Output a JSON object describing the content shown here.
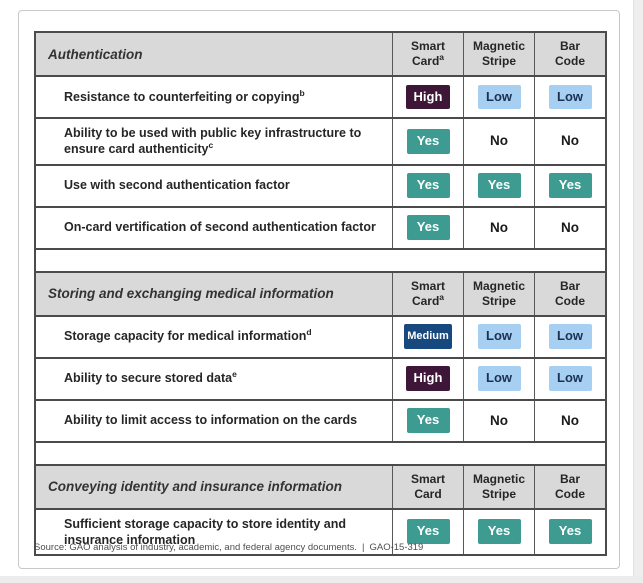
{
  "footer": {
    "source": "Source: GAO analysis of industry, academic, and federal agency documents.",
    "divider": "|",
    "report_number": "GAO-15-319"
  },
  "colors": {
    "badge_high_bg": "#3e1638",
    "badge_medium_bg": "#17497f",
    "badge_yes_bg": "#3d9b91",
    "badge_low_bg": "#a6cff2",
    "badge_low_text": "#1c3152",
    "header_row_bg": "#d9d9d9",
    "table_border": "#4b4b4b"
  },
  "sections": [
    {
      "title": "Authentication",
      "columns": [
        {
          "line1": "Smart",
          "line2": "Card",
          "sup": "a"
        },
        {
          "line1": "Magnetic",
          "line2": "Stripe",
          "sup": ""
        },
        {
          "line1": "Bar",
          "line2": "Code",
          "sup": ""
        }
      ],
      "rows": [
        {
          "label": "Resistance to counterfeiting or copying",
          "sup": "b",
          "values": [
            {
              "text": "High",
              "style": "high"
            },
            {
              "text": "Low",
              "style": "low"
            },
            {
              "text": "Low",
              "style": "low"
            }
          ]
        },
        {
          "label": "Ability to be used with public key infrastructure to ensure card authenticity",
          "sup": "c",
          "values": [
            {
              "text": "Yes",
              "style": "yes"
            },
            {
              "text": "No",
              "style": "none"
            },
            {
              "text": "No",
              "style": "none"
            }
          ]
        },
        {
          "label": "Use with second authentication factor",
          "sup": "",
          "values": [
            {
              "text": "Yes",
              "style": "yes"
            },
            {
              "text": "Yes",
              "style": "yes"
            },
            {
              "text": "Yes",
              "style": "yes"
            }
          ]
        },
        {
          "label": "On-card vertification of second authentication factor",
          "sup": "",
          "values": [
            {
              "text": "Yes",
              "style": "yes"
            },
            {
              "text": "No",
              "style": "none"
            },
            {
              "text": "No",
              "style": "none"
            }
          ]
        }
      ]
    },
    {
      "title": "Storing and exchanging medical information",
      "columns": [
        {
          "line1": "Smart",
          "line2": "Card",
          "sup": "a"
        },
        {
          "line1": "Magnetic",
          "line2": "Stripe",
          "sup": ""
        },
        {
          "line1": "Bar",
          "line2": "Code",
          "sup": ""
        }
      ],
      "rows": [
        {
          "label": "Storage capacity for medical information",
          "sup": "d",
          "values": [
            {
              "text": "Medium",
              "style": "medium"
            },
            {
              "text": "Low",
              "style": "low"
            },
            {
              "text": "Low",
              "style": "low"
            }
          ]
        },
        {
          "label": "Ability to secure stored data",
          "sup": "e",
          "values": [
            {
              "text": "High",
              "style": "high"
            },
            {
              "text": "Low",
              "style": "low"
            },
            {
              "text": "Low",
              "style": "low"
            }
          ]
        },
        {
          "label": "Ability to limit access to information on the cards",
          "sup": "",
          "values": [
            {
              "text": "Yes",
              "style": "yes"
            },
            {
              "text": "No",
              "style": "none"
            },
            {
              "text": "No",
              "style": "none"
            }
          ]
        }
      ]
    },
    {
      "title": "Conveying identity and insurance information",
      "columns": [
        {
          "line1": "Smart",
          "line2": "Card",
          "sup": ""
        },
        {
          "line1": "Magnetic",
          "line2": "Stripe",
          "sup": ""
        },
        {
          "line1": "Bar",
          "line2": "Code",
          "sup": ""
        }
      ],
      "rows": [
        {
          "label": "Sufficient storage capacity to store identity and insurance information",
          "sup": "",
          "values": [
            {
              "text": "Yes",
              "style": "yes"
            },
            {
              "text": "Yes",
              "style": "yes"
            },
            {
              "text": "Yes",
              "style": "yes"
            }
          ]
        }
      ]
    }
  ]
}
